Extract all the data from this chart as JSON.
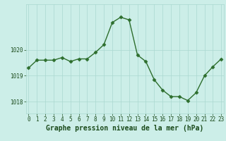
{
  "x": [
    0,
    1,
    2,
    3,
    4,
    5,
    6,
    7,
    8,
    9,
    10,
    11,
    12,
    13,
    14,
    15,
    16,
    17,
    18,
    19,
    20,
    21,
    22,
    23
  ],
  "y": [
    1019.3,
    1019.6,
    1019.6,
    1019.6,
    1019.7,
    1019.55,
    1019.65,
    1019.65,
    1019.9,
    1020.2,
    1021.05,
    1021.25,
    1021.15,
    1019.8,
    1019.55,
    1018.85,
    1018.45,
    1018.2,
    1018.2,
    1018.05,
    1018.35,
    1019.0,
    1019.35,
    1019.65
  ],
  "line_color": "#2d6e2d",
  "marker": "D",
  "markersize": 2.5,
  "linewidth": 1.0,
  "bg_color": "#cceee8",
  "grid_color": "#aad8d0",
  "ylim": [
    1017.55,
    1021.75
  ],
  "yticks": [
    1018,
    1019,
    1020
  ],
  "xticks": [
    0,
    1,
    2,
    3,
    4,
    5,
    6,
    7,
    8,
    9,
    10,
    11,
    12,
    13,
    14,
    15,
    16,
    17,
    18,
    19,
    20,
    21,
    22,
    23
  ],
  "tick_fontsize": 5.5,
  "xlabel": "Graphe pression niveau de la mer (hPa)",
  "xlabel_fontsize": 7.0,
  "xlabel_color": "#1a4a1a"
}
